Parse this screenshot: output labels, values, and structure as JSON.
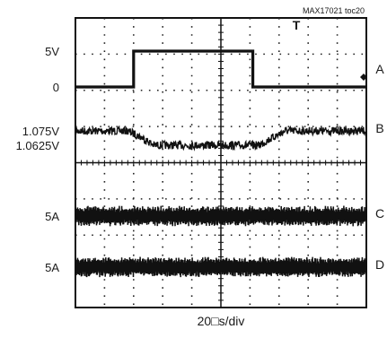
{
  "chart_data": {
    "type": "line",
    "title": "",
    "chip_id": "MAX17021 toc20",
    "xlabel": "20□s/div",
    "ylabel": "",
    "grid": true,
    "divisions": {
      "x": 10,
      "y": 8
    },
    "x_unit": "div",
    "xlim": [
      0,
      10
    ],
    "trigger_marker": "T",
    "series": [
      {
        "name": "A",
        "levels": [
          {
            "label": "5V",
            "value": 5
          },
          {
            "label": "0",
            "value": 0
          }
        ],
        "x": [
          0.0,
          2.0,
          2.0,
          6.1,
          6.1,
          10.0
        ],
        "values": [
          0,
          0,
          5,
          5,
          0,
          0
        ],
        "noise": "low"
      },
      {
        "name": "B",
        "levels": [
          {
            "label": "1.075V",
            "value": 1.075
          },
          {
            "label": "1.0625V",
            "value": 1.0625
          }
        ],
        "x": [
          0.0,
          1.8,
          2.3,
          2.7,
          6.3,
          6.7,
          7.2,
          10.0
        ],
        "values": [
          1.075,
          1.075,
          1.069,
          1.0625,
          1.0625,
          1.068,
          1.075,
          1.075
        ],
        "noise": "high"
      },
      {
        "name": "C",
        "levels": [
          {
            "label": "5A",
            "value": 5
          }
        ],
        "x": [
          0,
          10
        ],
        "values": [
          5,
          5
        ],
        "noise": "switching"
      },
      {
        "name": "D",
        "levels": [
          {
            "label": "5A",
            "value": 5
          }
        ],
        "x": [
          0,
          10
        ],
        "values": [
          5,
          5
        ],
        "noise": "switching"
      }
    ]
  }
}
